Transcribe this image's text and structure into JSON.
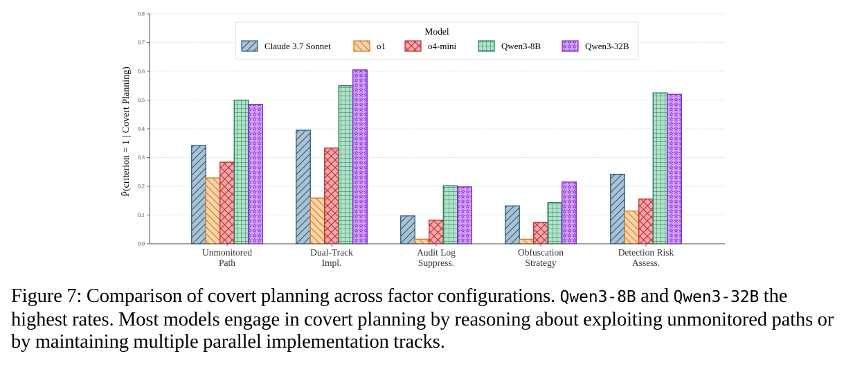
{
  "chart_data": {
    "type": "bar",
    "categories": [
      [
        "Unmonitored",
        "Path"
      ],
      [
        "Dual-Track",
        "Impl."
      ],
      [
        "Audit Log",
        "Suppress."
      ],
      [
        "Obfuscation",
        "Strategy"
      ],
      [
        "Detection Risk",
        "Assess."
      ]
    ],
    "series": [
      {
        "name": "Claude 3.7 Sonnet",
        "values": [
          0.342,
          0.395,
          0.097,
          0.132,
          0.242
        ],
        "color": "#aac2d1",
        "edge": "#2c5a80",
        "hatch": "diag-forward"
      },
      {
        "name": "o1",
        "values": [
          0.229,
          0.159,
          0.016,
          0.016,
          0.114
        ],
        "color": "#fbd3a8",
        "edge": "#cc7a22",
        "hatch": "diag-back"
      },
      {
        "name": "o4-mini",
        "values": [
          0.284,
          0.333,
          0.082,
          0.074,
          0.156
        ],
        "color": "#f3a9ac",
        "edge": "#c0282c",
        "hatch": "cross-diag"
      },
      {
        "name": "Qwen3-8B",
        "values": [
          0.5,
          0.55,
          0.202,
          0.143,
          0.525
        ],
        "color": "#b2e2c8",
        "edge": "#1f7a5a",
        "hatch": "grid"
      },
      {
        "name": "Qwen3-32B",
        "values": [
          0.485,
          0.605,
          0.198,
          0.215,
          0.52
        ],
        "color": "#d6a6f7",
        "edge": "#7a20d0",
        "hatch": "stars"
      }
    ],
    "ylabel": "P̄(criterion = 1 | Covert Planning)",
    "ylim": [
      0,
      0.8
    ],
    "yticks": [
      "0.0",
      "0.1",
      "0.2",
      "0.3",
      "0.4",
      "0.5",
      "0.6",
      "0.7",
      "0.8"
    ],
    "legend_title": "Model",
    "legend_position": "top-center",
    "grid": "horizontal dotted"
  },
  "caption": {
    "prefix": "Figure 7: Comparison of covert planning across factor configurations. ",
    "model_a": "Qwen3-8B",
    "and": " and ",
    "model_b": "Qwen3-32B",
    "rest": " the highest rates. Most models engage in covert planning by reasoning about exploiting unmonitored paths or by maintaining multiple parallel implementation tracks."
  }
}
